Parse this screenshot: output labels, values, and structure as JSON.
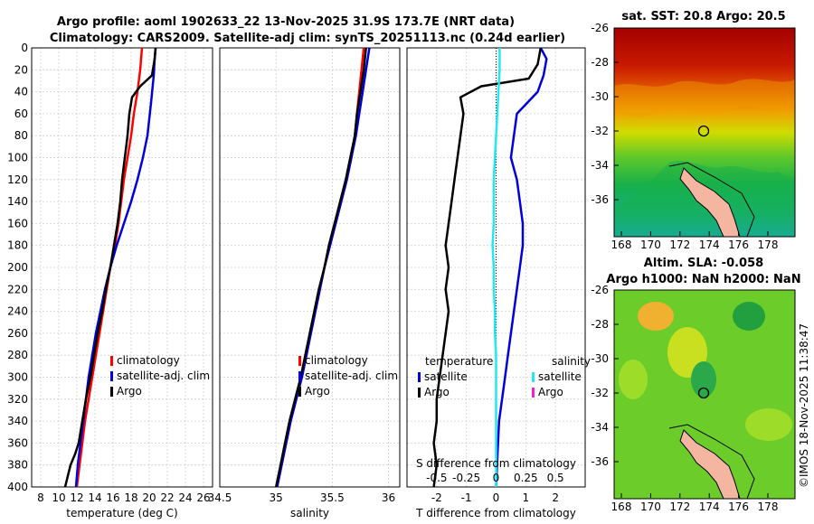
{
  "header": {
    "title_line1": "Argo profile: aoml 1902633_22 13-Nov-2025 31.9S 173.7E (NRT data)",
    "title_line2": "Climatology: CARS2009. Satellite-adj clim: synTS_20251113.nc (0.24d earlier)"
  },
  "colors": {
    "climatology": "#ff0000",
    "satellite": "#0000dd",
    "argo": "#000000",
    "satellite_salinity": "#22e8f0",
    "argo_salinity": "#ee22cc"
  },
  "depth_ticks": [
    "0",
    "20",
    "40",
    "60",
    "80",
    "100",
    "120",
    "140",
    "160",
    "180",
    "200",
    "220",
    "240",
    "260",
    "280",
    "300",
    "320",
    "340",
    "360",
    "380",
    "400"
  ],
  "chart_data": [
    {
      "type": "line",
      "id": "temperature",
      "xlabel": "temperature (deg C)",
      "ylabel": "depth",
      "xlim": [
        7,
        27
      ],
      "ylim": [
        400,
        0
      ],
      "xticks": [
        8,
        10,
        12,
        14,
        16,
        18,
        20,
        22,
        24,
        26
      ],
      "xtick_labels": [
        "8",
        "10",
        "12",
        "14",
        "16",
        "18",
        "20",
        "22",
        "24",
        "26"
      ],
      "legend": [
        "climatology",
        "satellite-adj. clim",
        "Argo"
      ],
      "series": [
        {
          "name": "climatology",
          "x": [
            19.2,
            19.0,
            18.7,
            18.3,
            18.0,
            17.6,
            17.2,
            16.9,
            16.6,
            16.2,
            15.7,
            15.3,
            14.9,
            14.5,
            14.1,
            13.7,
            13.3,
            12.9,
            12.6,
            12.3,
            12.0
          ],
          "y": [
            0,
            20,
            40,
            60,
            80,
            100,
            120,
            140,
            160,
            180,
            200,
            220,
            240,
            260,
            280,
            300,
            320,
            340,
            360,
            380,
            400
          ]
        },
        {
          "name": "satellite-adj. clim",
          "x": [
            20.7,
            20.6,
            20.5,
            20.2,
            19.8,
            19.3,
            18.7,
            18.0,
            17.2,
            16.4,
            15.7,
            15.1,
            14.6,
            14.1,
            13.7,
            13.3,
            13.0,
            12.7,
            12.4,
            12.1,
            11.9
          ],
          "y": [
            0,
            10,
            25,
            50,
            80,
            100,
            120,
            140,
            160,
            180,
            200,
            220,
            240,
            260,
            280,
            300,
            320,
            340,
            360,
            380,
            400
          ]
        },
        {
          "name": "Argo",
          "x": [
            20.7,
            20.6,
            20.3,
            19.0,
            18.1,
            17.8,
            17.6,
            17.3,
            17.0,
            16.8,
            16.5,
            16.1,
            15.7,
            15.2,
            14.8,
            14.3,
            13.9,
            13.5,
            13.0,
            12.6,
            12.2,
            11.8,
            11.3,
            11.0,
            10.7
          ],
          "y": [
            0,
            10,
            25,
            35,
            45,
            60,
            80,
            100,
            120,
            140,
            160,
            180,
            200,
            220,
            240,
            260,
            280,
            300,
            320,
            340,
            360,
            370,
            380,
            390,
            400
          ]
        }
      ]
    },
    {
      "type": "line",
      "id": "salinity",
      "xlabel": "salinity",
      "ylabel": "depth",
      "xlim": [
        34.5,
        36.1
      ],
      "ylim": [
        400,
        0
      ],
      "xticks": [
        34.5,
        35,
        35.5,
        36
      ],
      "xtick_labels": [
        "34.5",
        "35",
        "35.5",
        "36"
      ],
      "legend": [
        "climatology",
        "satellite-adj. clim",
        "Argo"
      ],
      "series": [
        {
          "name": "climatology",
          "x": [
            35.78,
            35.76,
            35.74,
            35.72,
            35.7,
            35.67,
            35.63,
            35.58,
            35.53,
            35.48,
            35.43,
            35.39,
            35.35,
            35.31,
            35.27,
            35.23,
            35.18,
            35.13,
            35.09,
            35.05,
            35.01
          ],
          "y": [
            0,
            20,
            40,
            60,
            80,
            100,
            120,
            140,
            160,
            180,
            200,
            220,
            240,
            260,
            280,
            300,
            320,
            340,
            360,
            380,
            400
          ]
        },
        {
          "name": "satellite-adj. clim",
          "x": [
            35.83,
            35.8,
            35.77,
            35.74,
            35.71,
            35.67,
            35.63,
            35.58,
            35.53,
            35.48,
            35.43,
            35.39,
            35.35,
            35.31,
            35.27,
            35.23,
            35.18,
            35.13,
            35.09,
            35.05,
            35.01
          ],
          "y": [
            0,
            20,
            40,
            60,
            80,
            100,
            120,
            140,
            160,
            180,
            200,
            220,
            240,
            260,
            280,
            300,
            320,
            340,
            360,
            380,
            400
          ]
        },
        {
          "name": "Argo",
          "x": [
            35.8,
            35.78,
            35.75,
            35.72,
            35.7,
            35.66,
            35.62,
            35.57,
            35.52,
            35.47,
            35.43,
            35.38,
            35.34,
            35.3,
            35.26,
            35.22,
            35.17,
            35.12,
            35.08,
            35.04,
            35.0
          ],
          "y": [
            0,
            20,
            40,
            60,
            80,
            100,
            120,
            140,
            160,
            180,
            200,
            220,
            240,
            260,
            280,
            300,
            320,
            340,
            360,
            380,
            400
          ]
        }
      ]
    },
    {
      "type": "line",
      "id": "differences",
      "xlabel": "T difference from climatology",
      "xlabel_top": "S difference from climatology",
      "ylabel": "depth",
      "xlim": [
        -3,
        3
      ],
      "ylim": [
        400,
        0
      ],
      "xticks": [
        -2,
        -1,
        0,
        1,
        2
      ],
      "xtick_labels": [
        "-2",
        "-1",
        "0",
        "1",
        "2"
      ],
      "s_ticks": [
        -0.5,
        -0.25,
        0,
        0.25,
        0.5
      ],
      "s_tick_labels": [
        "-0.5",
        "-0.25",
        "0",
        "0.25",
        "0.5"
      ],
      "s_scale": 0.25,
      "legend_temperature_header": "temperature",
      "legend_salinity_header": "salinity",
      "legend_temperature": [
        "satellite",
        "Argo"
      ],
      "legend_salinity": [
        "satellite",
        "Argo"
      ],
      "series": [
        {
          "name": "T satellite",
          "x": [
            1.5,
            1.7,
            1.6,
            1.4,
            0.7,
            0.6,
            0.5,
            0.7,
            0.8,
            0.9,
            0.9,
            0.8,
            0.7,
            0.6,
            0.5,
            0.4,
            0.3,
            0.2,
            0.1,
            0.05,
            0.0
          ],
          "y": [
            0,
            10,
            25,
            40,
            60,
            80,
            100,
            120,
            140,
            160,
            180,
            200,
            220,
            240,
            260,
            280,
            300,
            320,
            340,
            370,
            400
          ]
        },
        {
          "name": "T Argo",
          "x": [
            1.5,
            1.4,
            1.1,
            -0.5,
            -1.2,
            -1.1,
            -1.2,
            -1.3,
            -1.4,
            -1.5,
            -1.6,
            -1.7,
            -1.6,
            -1.7,
            -1.6,
            -1.7,
            -1.8,
            -1.9,
            -2.0,
            -2.0,
            -2.1,
            -2.0,
            -2.1
          ],
          "y": [
            0,
            15,
            28,
            35,
            45,
            60,
            80,
            100,
            120,
            140,
            160,
            180,
            200,
            220,
            240,
            260,
            280,
            300,
            320,
            340,
            360,
            380,
            400
          ]
        },
        {
          "name": "S satellite",
          "x": [
            0.03,
            0.03,
            0.02,
            0.01,
            0.0,
            -0.01,
            -0.02,
            -0.02,
            -0.02,
            -0.03,
            -0.02,
            -0.02,
            -0.01,
            -0.01,
            0.0,
            0.0,
            0.0,
            0.0,
            0.0,
            0.0,
            0.0
          ],
          "y": [
            0,
            20,
            40,
            60,
            80,
            100,
            120,
            140,
            160,
            180,
            200,
            220,
            240,
            260,
            280,
            300,
            320,
            340,
            360,
            380,
            400
          ]
        }
      ]
    }
  ],
  "maps": {
    "sst": {
      "title": "sat. SST: 20.8 Argo: 20.5",
      "x_ticks": [
        "168",
        "170",
        "172",
        "174",
        "176",
        "178"
      ],
      "y_ticks": [
        "-26",
        "-28",
        "-30",
        "-32",
        "-34",
        "-36"
      ]
    },
    "sla": {
      "title_line1": "Altim. SLA: -0.058",
      "title_line2": "Argo h1000: NaN h2000: NaN",
      "x_ticks": [
        "168",
        "170",
        "172",
        "174",
        "176",
        "178"
      ],
      "y_ticks": [
        "-26",
        "-28",
        "-30",
        "-32",
        "-34",
        "-36"
      ]
    }
  },
  "footer": {
    "credit": "©IMOS 18-Nov-2025 11:38:47"
  }
}
